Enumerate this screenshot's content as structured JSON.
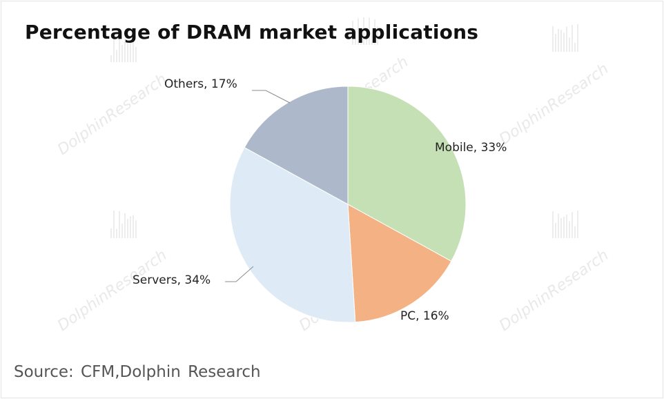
{
  "title": "Percentage of DRAM market applications",
  "source": "Source:  CFM,Dolphin  Research",
  "watermark": "DolphinResearch",
  "chart_data": {
    "type": "pie",
    "title": "Percentage of DRAM market applications",
    "start_angle_deg": 0,
    "direction": "clockwise",
    "slices": [
      {
        "label": "Mobile",
        "value": 33,
        "display": "Mobile, 33%",
        "color": "#c5e0b4"
      },
      {
        "label": "PC",
        "value": 16,
        "display": "PC, 16%",
        "color": "#f4b183"
      },
      {
        "label": "Servers",
        "value": 34,
        "display": "Servers, 34%",
        "color": "#deebf7"
      },
      {
        "label": "Others",
        "value": 17,
        "display": "Others, 17%",
        "color": "#adb9ca"
      }
    ]
  }
}
